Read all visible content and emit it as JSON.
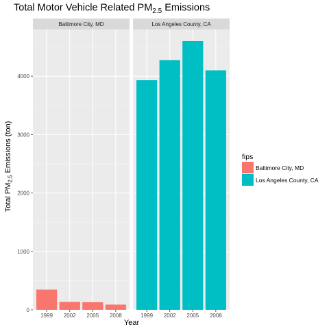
{
  "chart_data": {
    "type": "bar",
    "title": "Total Motor Vehicle Related PM",
    "title_subscript": "2.5",
    "title_suffix": " Emissions",
    "xlabel": "Year",
    "ylabel": "Total PM",
    "ylabel_subscript": "2.5",
    "ylabel_suffix": " Emissions (ton)",
    "ylim": [
      0,
      4800
    ],
    "yticks": [
      0,
      1000,
      2000,
      3000,
      4000
    ],
    "categories": [
      "1999",
      "2002",
      "2005",
      "2008"
    ],
    "grid": true,
    "legend": {
      "title": "fips",
      "position": "right"
    },
    "facets": [
      {
        "label": "Baltimore City, MD",
        "series": [
          {
            "name": "Baltimore City, MD",
            "color": "#F8766D",
            "values": [
              346,
              134,
              130,
              89
            ]
          }
        ]
      },
      {
        "label": "Los Angeles County, CA",
        "series": [
          {
            "name": "Los Angeles County, CA",
            "color": "#00BFC4",
            "values": [
              3931,
              4274,
              4601,
              4101
            ]
          }
        ]
      }
    ]
  }
}
